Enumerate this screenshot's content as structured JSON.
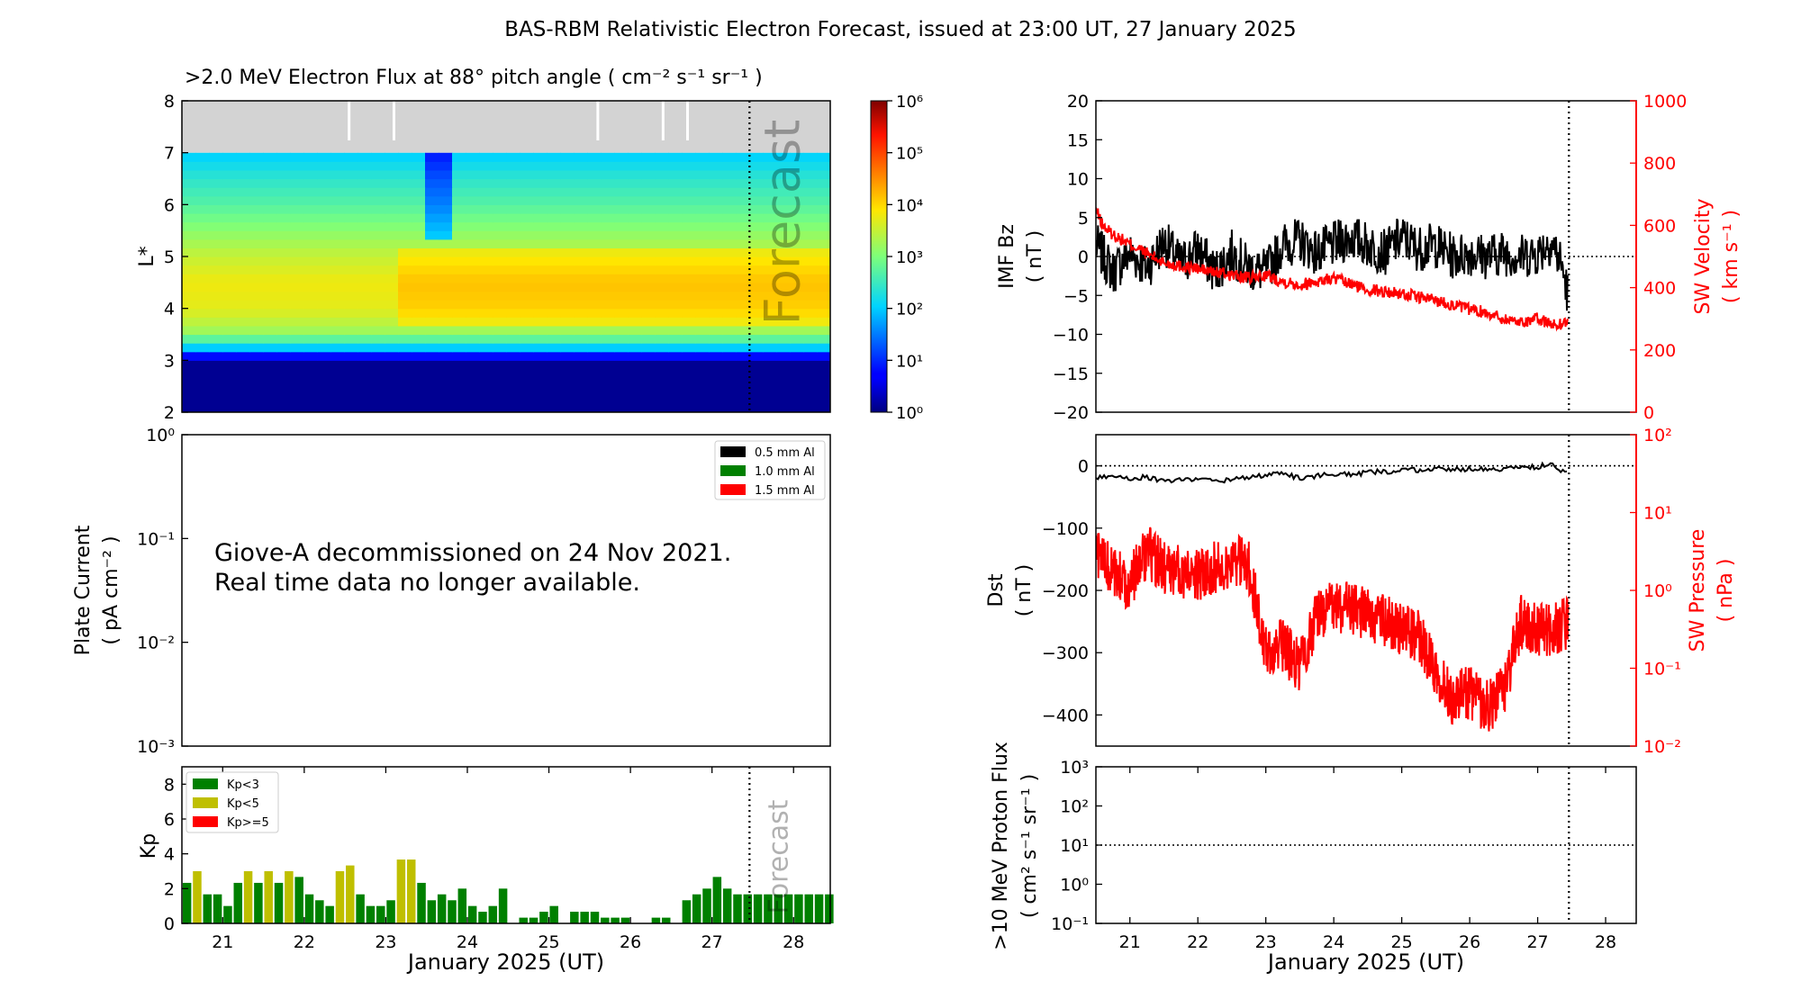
{
  "title": "BAS-RBM Relativistic Electron Forecast, issued at 23:00 UT, 27 January 2025",
  "colors": {
    "frame": "#000000",
    "red": "#ff0000",
    "kp_low": "#008000",
    "kp_mid": "#bfbf00",
    "kp_high": "#ff0000",
    "no_data": "#d3d3d3"
  },
  "chart_data": [
    {
      "id": "flux",
      "type": "heatmap",
      "title": ">2.0 MeV Electron Flux at 88° pitch angle ( cm⁻² s⁻¹ sr⁻¹ )",
      "ylabel": "L*",
      "ylim": [
        2,
        8
      ],
      "xlim": [
        20.5,
        28.45
      ],
      "yticks": [
        "2",
        "3",
        "4",
        "5",
        "6",
        "7",
        "8"
      ],
      "forecast_start": 27.46,
      "forecast_label": "Forecast",
      "no_data_above_L": 7,
      "colorbar": {
        "scale": "log",
        "range": [
          0,
          6
        ],
        "ticks": [
          "10⁰",
          "10¹",
          "10²",
          "10³",
          "10⁴",
          "10⁵",
          "10⁶"
        ]
      },
      "profile_L": [
        2,
        3.0,
        3.15,
        3.3,
        3.6,
        4.0,
        4.5,
        5.0,
        5.5,
        6.0,
        6.5,
        7.0
      ],
      "profile_log_flux": [
        0.1,
        0.1,
        1.2,
        2.4,
        3.3,
        3.7,
        3.8,
        3.5,
        3.1,
        2.7,
        2.4,
        2.0
      ],
      "enhancement_after": 23.2
    },
    {
      "id": "plate",
      "type": "line",
      "ylabel": "Plate Current",
      "ylabel_units": "( pA cm⁻² )",
      "yscale": "log",
      "ylim": [
        -3,
        0
      ],
      "yticks": [
        "10⁻³",
        "10⁻²",
        "10⁻¹",
        "10⁰"
      ],
      "legend": [
        {
          "label": "0.5 mm Al",
          "color": "#000000"
        },
        {
          "label": "1.0 mm Al",
          "color": "#008000"
        },
        {
          "label": "1.5 mm Al",
          "color": "#ff0000"
        }
      ],
      "annotation": [
        "Giove-A decommissioned on 24 Nov 2021.",
        "Real time data no longer available."
      ]
    },
    {
      "id": "kp",
      "type": "bar",
      "ylabel": "Kp",
      "ylim": [
        0,
        9
      ],
      "yticks": [
        "0",
        "2",
        "4",
        "6",
        "8"
      ],
      "xlim": [
        20.5,
        28.45
      ],
      "xticks": [
        "21",
        "22",
        "23",
        "24",
        "25",
        "26",
        "27",
        "28"
      ],
      "xlabel": "January 2025 (UT)",
      "forecast_start": 27.46,
      "forecast_label": "Forecast",
      "legend": [
        {
          "label": "Kp<3",
          "color": "#008000"
        },
        {
          "label": "Kp<5",
          "color": "#bfbf00"
        },
        {
          "label": "Kp>=5",
          "color": "#ff0000"
        }
      ],
      "bar_width_days": 0.105,
      "start_day": 20.5,
      "values": [
        2.33,
        3.0,
        1.67,
        1.67,
        1.0,
        2.33,
        3.0,
        2.33,
        3.0,
        2.33,
        3.0,
        2.67,
        1.67,
        1.33,
        1.0,
        3.0,
        3.33,
        1.67,
        1.0,
        1.0,
        1.33,
        3.67,
        3.67,
        2.33,
        1.33,
        1.67,
        1.33,
        2.0,
        1.0,
        0.67,
        1.0,
        2.0,
        0.0,
        0.33,
        0.33,
        0.67,
        1.0,
        0.0,
        0.67,
        0.67,
        0.67,
        0.33,
        0.33,
        0.33,
        0.0,
        0.0,
        0.33,
        0.33,
        0.0,
        1.33,
        1.67,
        2.0,
        2.67,
        2.0,
        1.67,
        1.67,
        1.67,
        1.67,
        1.67,
        1.67,
        1.67,
        1.67,
        1.67,
        1.67
      ]
    },
    {
      "id": "imf",
      "type": "line",
      "ylabel": "IMF Bz",
      "ylabel_units": "( nT )",
      "ylim": [
        -20,
        20
      ],
      "yticks": [
        "−20",
        "−15",
        "−10",
        "−5",
        "0",
        "5",
        "10",
        "15",
        "20"
      ],
      "y2label": "SW Velocity",
      "y2label_units": "( km s⁻¹ )",
      "y2lim": [
        0,
        1000
      ],
      "y2ticks": [
        "0",
        "200",
        "400",
        "600",
        "800",
        "1000"
      ],
      "xlim": [
        20.5,
        28.45
      ],
      "now": 27.46,
      "series": [
        {
          "name": "IMF Bz",
          "axis": "left",
          "color": "#000000",
          "t": [
            20.5,
            20.75,
            21.0,
            21.25,
            21.5,
            21.75,
            22.0,
            22.25,
            22.5,
            22.75,
            23.0,
            23.25,
            23.5,
            23.75,
            24.0,
            24.25,
            24.5,
            24.75,
            25.0,
            25.25,
            25.5,
            25.75,
            26.0,
            26.25,
            26.5,
            26.75,
            27.0,
            27.2,
            27.35,
            27.45
          ],
          "values": [
            1.5,
            -2.0,
            0.5,
            -1.5,
            2.0,
            -1.0,
            1.0,
            -2.0,
            0.5,
            -1.5,
            -2.0,
            1.5,
            2.0,
            0.5,
            1.5,
            2.5,
            1.5,
            0.5,
            2.5,
            1.0,
            1.5,
            0.0,
            0.5,
            0.0,
            0.5,
            0.0,
            0.5,
            2.0,
            -1.0,
            -5.0
          ],
          "noise": 3.0
        },
        {
          "name": "SW Velocity",
          "axis": "right",
          "color": "#ff0000",
          "t": [
            20.5,
            20.6,
            20.75,
            21.0,
            21.25,
            21.5,
            22.0,
            22.5,
            22.75,
            23.0,
            23.25,
            23.5,
            24.0,
            24.25,
            24.5,
            25.0,
            25.5,
            26.0,
            26.25,
            26.5,
            26.75,
            27.0,
            27.25,
            27.45
          ],
          "values": [
            650,
            600,
            570,
            540,
            510,
            480,
            460,
            440,
            430,
            440,
            420,
            410,
            430,
            410,
            395,
            380,
            360,
            330,
            320,
            300,
            290,
            300,
            280,
            290
          ],
          "noise": 20
        }
      ]
    },
    {
      "id": "dst",
      "type": "line",
      "ylabel": "Dst",
      "ylabel_units": "( nT )",
      "ylim": [
        -450,
        50
      ],
      "yticks": [
        "−400",
        "−300",
        "−200",
        "−100",
        "0"
      ],
      "y2label": "SW Pressure",
      "y2label_units": "( nPa )",
      "y2scale": "log",
      "y2lim": [
        -2,
        2
      ],
      "y2ticks": [
        "10⁻²",
        "10⁻¹",
        "10⁰",
        "10¹",
        "10²"
      ],
      "xlim": [
        20.5,
        28.45
      ],
      "now": 27.46,
      "series": [
        {
          "name": "Dst",
          "axis": "left",
          "color": "#000000",
          "t": [
            20.5,
            20.75,
            21.0,
            21.25,
            21.5,
            22.0,
            22.25,
            22.5,
            23.0,
            23.25,
            23.5,
            24.0,
            24.25,
            24.5,
            25.0,
            25.5,
            26.0,
            26.5,
            26.75,
            27.0,
            27.2,
            27.3,
            27.45
          ],
          "values": [
            -20,
            -15,
            -20,
            -18,
            -25,
            -20,
            -25,
            -22,
            -15,
            -12,
            -20,
            -12,
            -15,
            -10,
            -8,
            -5,
            -5,
            -5,
            -3,
            -2,
            5,
            -10,
            -5
          ],
          "noise": 4
        },
        {
          "name": "SW Pressure",
          "axis": "right",
          "color": "#ff0000",
          "t": [
            20.5,
            20.75,
            21.0,
            21.25,
            21.5,
            22.0,
            22.25,
            22.5,
            22.75,
            23.0,
            23.25,
            23.5,
            23.75,
            24.0,
            24.5,
            25.0,
            25.25,
            25.5,
            25.75,
            26.0,
            26.25,
            26.5,
            26.75,
            27.0,
            27.25,
            27.45
          ],
          "values": [
            0.5,
            0.2,
            0.1,
            0.5,
            0.3,
            0.2,
            0.3,
            0.4,
            0.3,
            -0.8,
            -0.7,
            -1.0,
            -0.3,
            -0.2,
            -0.3,
            -0.5,
            -0.6,
            -1.0,
            -1.4,
            -1.3,
            -1.5,
            -1.3,
            -0.4,
            -0.5,
            -0.5,
            -0.4
          ],
          "noise": 0.35
        }
      ]
    },
    {
      "id": "proton",
      "type": "line",
      "ylabel": ">10 MeV Proton Flux",
      "ylabel_units": "( cm² s⁻¹ sr⁻¹ )",
      "yscale": "log",
      "ylim": [
        -1,
        3
      ],
      "yticks": [
        "10⁻¹",
        "10⁰",
        "10¹",
        "10²",
        "10³"
      ],
      "threshold_log": 1,
      "xlim": [
        20.5,
        28.45
      ],
      "xticks": [
        "21",
        "22",
        "23",
        "24",
        "25",
        "26",
        "27",
        "28"
      ],
      "xlabel": "January 2025 (UT)",
      "now": 27.46
    }
  ]
}
